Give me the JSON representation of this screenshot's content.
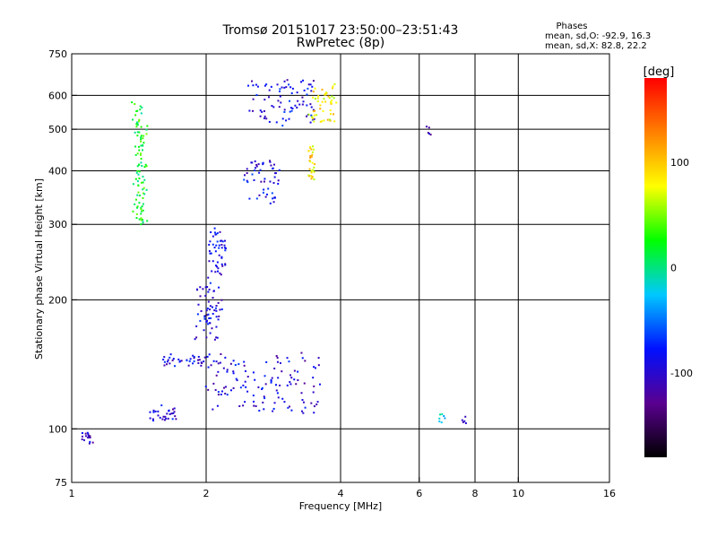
{
  "chart_data": {
    "type": "scatter",
    "title": "Tromsø 20151017 23:50:00–23:51:43",
    "subtitle": "RwPretec (8p)",
    "xlabel": "Frequency [MHz]",
    "ylabel": "Stationary phase Virtual Height [km]",
    "x_scale": "log",
    "y_scale": "log",
    "xlim": [
      1,
      16
    ],
    "ylim": [
      75,
      750
    ],
    "x_ticks": [
      1,
      2,
      4,
      6,
      8,
      10,
      16
    ],
    "y_ticks": [
      75,
      100,
      200,
      300,
      400,
      500,
      600,
      750
    ],
    "grid_x": [
      2,
      4,
      6,
      8,
      10
    ],
    "grid_y": [
      100,
      200,
      300,
      400,
      500,
      600
    ],
    "phase_stats": {
      "title": "Phases",
      "line1": "mean, sd,O:  -92.9, 16.3",
      "line2": "mean, sd,X:  82.8, 22.2"
    },
    "colorbar": {
      "label": "[deg]",
      "range": [
        -180,
        180
      ],
      "ticks": [
        100,
        0,
        -100
      ],
      "colors": [
        "#000000",
        "#5a0090",
        "#0010ff",
        "#00c8ff",
        "#00ff00",
        "#ffff00",
        "#ff8000",
        "#ff0000"
      ]
    },
    "traces": [
      {
        "f": [
          1.0,
          3.98
        ],
        "h": [
          88,
          670
        ],
        "phase": -95
      },
      {
        "f": [
          1.05,
          1.12
        ],
        "h": [
          92,
          98
        ],
        "phase": -100
      },
      {
        "f": [
          1.38,
          1.46
        ],
        "h": [
          300,
          580
        ],
        "phase": 20
      },
      {
        "f": [
          1.5,
          1.7
        ],
        "h": [
          103,
          112
        ],
        "phase": -95
      },
      {
        "f": [
          1.6,
          2.0
        ],
        "h": [
          142,
          148
        ],
        "phase": -92
      },
      {
        "f": [
          1.9,
          2.15
        ],
        "h": [
          160,
          215
        ],
        "phase": -92
      },
      {
        "f": [
          2.05,
          2.2
        ],
        "h": [
          215,
          290
        ],
        "phase": -88
      },
      {
        "f": [
          2.0,
          3.6
        ],
        "h": [
          110,
          150
        ],
        "phase": -95
      },
      {
        "f": [
          2.45,
          2.9
        ],
        "h": [
          340,
          420
        ],
        "phase": -90
      },
      {
        "f": [
          2.5,
          3.5
        ],
        "h": [
          510,
          650
        ],
        "phase": -92
      },
      {
        "f": [
          3.4,
          3.9
        ],
        "h": [
          520,
          650
        ],
        "phase": 85
      },
      {
        "f": [
          3.4,
          3.5
        ],
        "h": [
          380,
          460
        ],
        "phase": 90
      },
      {
        "f": [
          6.3,
          6.35
        ],
        "h": [
          490,
          505
        ],
        "phase": -110
      },
      {
        "f": [
          6.7,
          6.8
        ],
        "h": [
          104,
          108
        ],
        "phase": -30
      },
      {
        "f": [
          7.5,
          7.6
        ],
        "h": [
          104,
          106
        ],
        "phase": -120
      }
    ]
  }
}
